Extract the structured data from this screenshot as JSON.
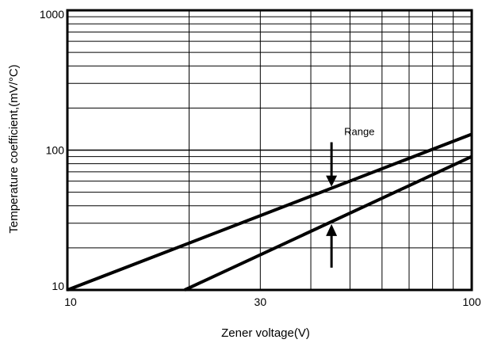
{
  "chart_data": {
    "type": "line",
    "title": "",
    "xlabel": "Zener voltage(V)",
    "ylabel": "Temperature coefficient,(mV/°C)",
    "x_scale": "log",
    "y_scale": "log",
    "xlim": [
      10,
      100
    ],
    "ylim": [
      10,
      1000
    ],
    "x_ticks": [
      10,
      30,
      100
    ],
    "x_tick_labels": [
      "10",
      "30",
      "100"
    ],
    "y_ticks": [
      10,
      100,
      1000
    ],
    "y_tick_labels": [
      "10",
      "100",
      "1000"
    ],
    "grid": true,
    "legend": "none",
    "series": [
      {
        "x": [
          10,
          100
        ],
        "y": [
          10,
          130
        ]
      },
      {
        "x": [
          19.5,
          100
        ],
        "y": [
          10,
          90
        ]
      }
    ],
    "annotations": [
      {
        "text": "Range",
        "x": 45,
        "y": 120
      }
    ],
    "colors": {
      "line": "#000000",
      "grid": "#000000",
      "background": "#ffffff"
    }
  }
}
